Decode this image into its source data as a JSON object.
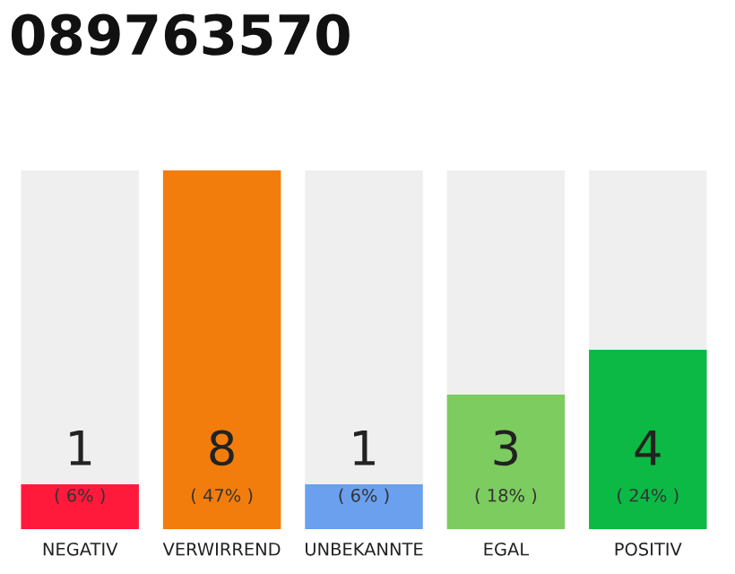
{
  "chart_data": {
    "type": "bar",
    "title": "089763570",
    "categories": [
      "NEGATIV",
      "VERWIRREND",
      "UNBEKANNTE",
      "EGAL",
      "POSITIV"
    ],
    "values": [
      1,
      8,
      1,
      3,
      4
    ],
    "colors": [
      "#ff1a3c",
      "#f27d0c",
      "#6aa0ee",
      "#7dcc5f",
      "#0cb944"
    ],
    "data_labels": true,
    "annotations": [
      "( 6% )",
      "( 47% )",
      "( 6% )",
      "( 18% )",
      "( 24% )"
    ]
  }
}
